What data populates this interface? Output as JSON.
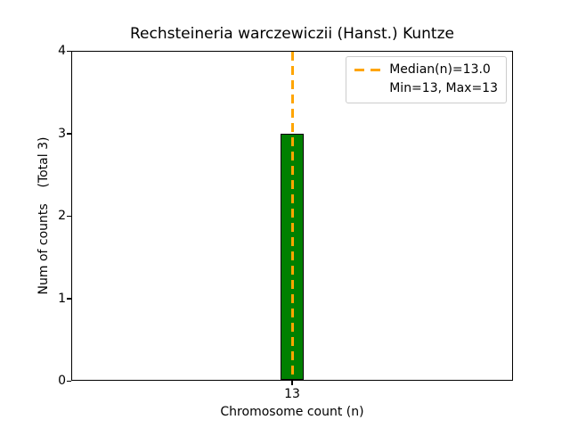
{
  "chart_data": {
    "type": "bar",
    "title": "Rechsteineria warczewiczii (Hanst.) Kuntze",
    "xlabel": "Chromosome count (n)",
    "ylabel": "Num of counts    (Total 3)",
    "categories": [
      "13"
    ],
    "values": [
      3
    ],
    "total_counts": 3,
    "ylim": [
      0,
      4
    ],
    "yticks": [
      0,
      1,
      2,
      3,
      4
    ],
    "grid": false,
    "bar_color": "#008000",
    "bar_edge_color": "#000000",
    "median_line": {
      "value": 13.0,
      "color": "#ffa500",
      "style": "dashed"
    },
    "legend": {
      "position": "upper right",
      "entries": [
        {
          "symbol": "dashed-line",
          "color": "#ffa500",
          "label": "Median(n)=13.0"
        },
        {
          "symbol": "none",
          "label": "Min=13, Max=13"
        }
      ]
    }
  }
}
